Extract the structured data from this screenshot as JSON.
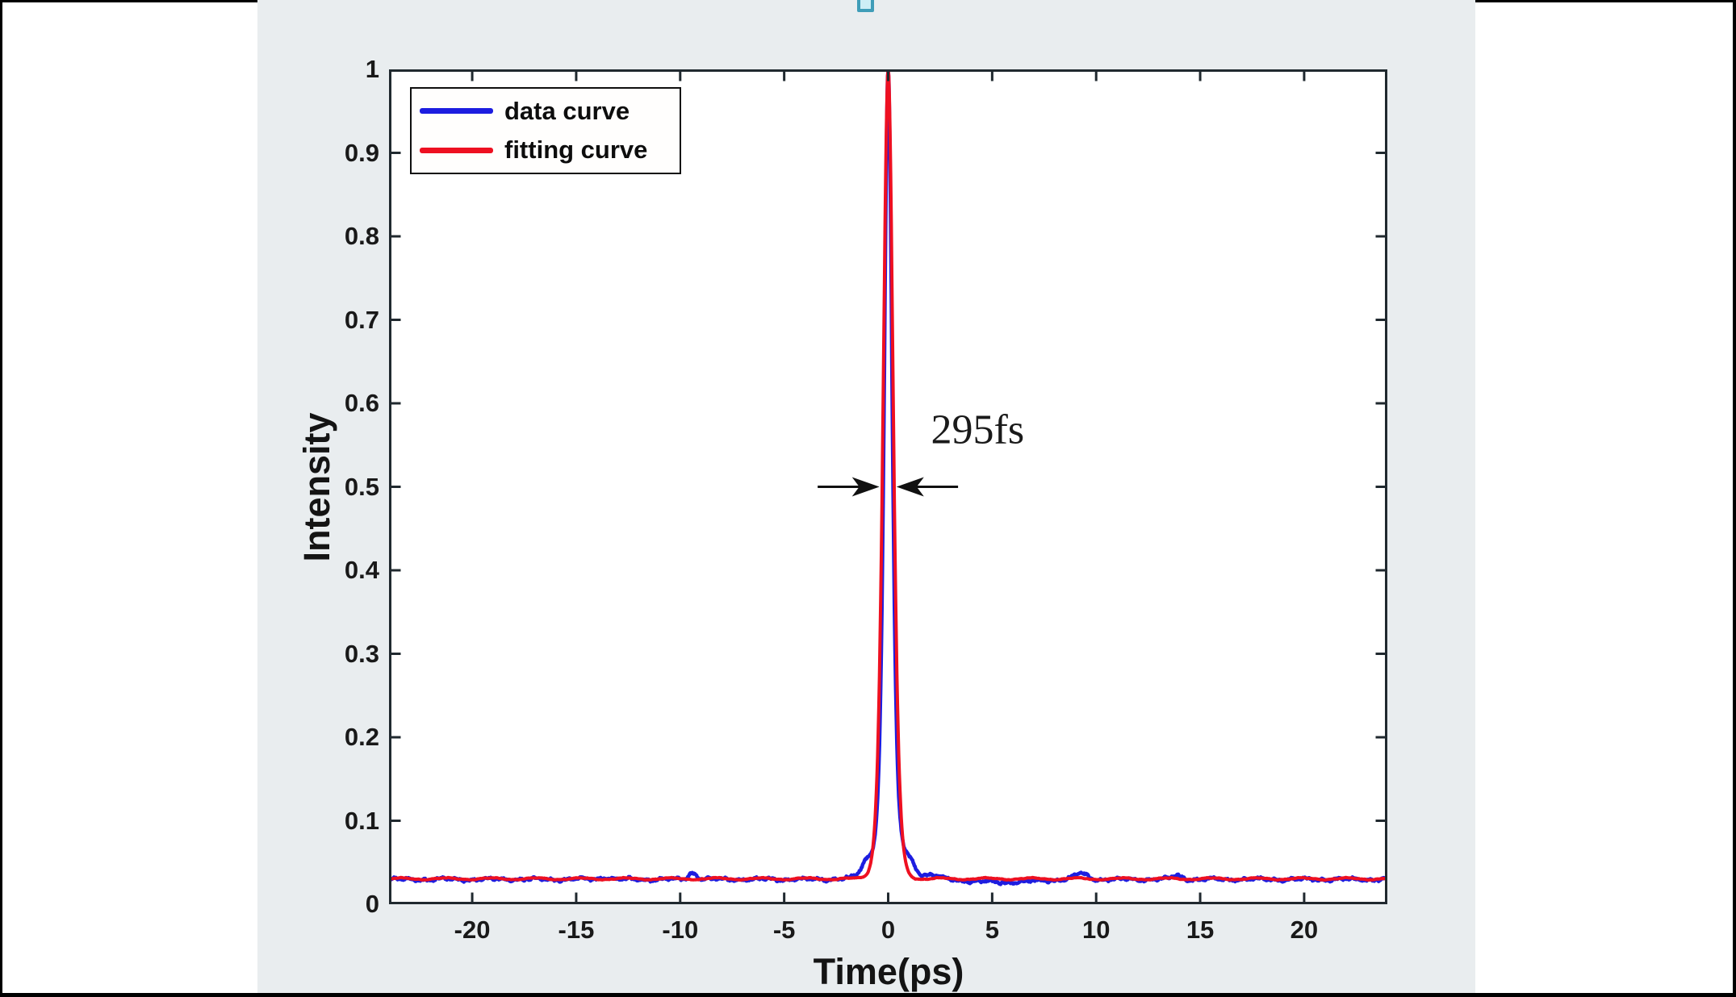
{
  "figure": {
    "page_background": "#ffffff",
    "frame_color": "#000000",
    "panel_background": "#e9edef",
    "axis_color": "#20292f",
    "tick_label_color": "#191919",
    "selection_handle": {
      "border": "#3f9db8",
      "fill": "#cdeef6"
    }
  },
  "legend": {
    "items": [
      {
        "label": "data curve",
        "color": "#1d1de0"
      },
      {
        "label": "fitting curve",
        "color": "#ee1021"
      }
    ]
  },
  "annotation": {
    "text": "295fs"
  },
  "chart_data": {
    "type": "line",
    "title": "",
    "xlabel": "Time(ps)",
    "ylabel": "Intensity",
    "xlim": [
      -24,
      24
    ],
    "ylim": [
      0,
      1
    ],
    "grid": false,
    "legend_position": "top-left",
    "x_ticks": [
      -20,
      -15,
      -10,
      -5,
      0,
      5,
      10,
      15,
      20
    ],
    "x_tick_labels": [
      "-20",
      "-15",
      "-10",
      "-5",
      "0",
      "5",
      "10",
      "15",
      "20"
    ],
    "y_ticks": [
      0,
      0.1,
      0.2,
      0.3,
      0.4,
      0.5,
      0.6,
      0.7,
      0.8,
      0.9,
      1
    ],
    "y_tick_labels": [
      "0",
      "0.1",
      "0.2",
      "0.3",
      "0.4",
      "0.5",
      "0.6",
      "0.7",
      "0.8",
      "0.9",
      "1"
    ],
    "key_points": {
      "peak_time_ps": 0,
      "peak_intensity": 1.0,
      "baseline_intensity": 0.03,
      "fwhm_label": "295fs",
      "fwhm_marker_intensity": 0.5
    },
    "series": [
      {
        "name": "data curve",
        "color": "#1d1de0",
        "line_width": 4.5,
        "model": {
          "type": "sech2_multi",
          "baseline": 0.0298,
          "seed": 42,
          "noise_amp": 0.0016,
          "components": [
            {
              "amp": 0.915,
              "tau_ps": 0.25
            },
            {
              "amp": 0.055,
              "tau_ps": 0.78
            }
          ],
          "bumps": [
            {
              "t_ps": 1.02,
              "amp": 0.013,
              "w_ps": 0.35
            },
            {
              "t_ps": -1.05,
              "amp": 0.011,
              "w_ps": 0.32
            },
            {
              "t_ps": 2.1,
              "amp": 0.004,
              "w_ps": 0.7
            },
            {
              "t_ps": -9.4,
              "amp": 0.008,
              "w_ps": 0.28
            },
            {
              "t_ps": 9.25,
              "amp": 0.007,
              "w_ps": 0.45
            },
            {
              "t_ps": 13.9,
              "amp": 0.0045,
              "w_ps": 0.35
            },
            {
              "t_ps": -13.6,
              "amp": 0.003,
              "w_ps": 0.3
            },
            {
              "t_ps": 5.5,
              "amp": -0.0035,
              "w_ps": 2.2
            }
          ]
        }
      },
      {
        "name": "fitting curve",
        "color": "#ee1021",
        "line_width": 4,
        "model": {
          "type": "sech2_multi",
          "baseline": 0.0305,
          "seed": 7,
          "noise_amp": 0.0004,
          "components": [
            {
              "amp": 0.9695,
              "tau_ps": 0.32
            }
          ],
          "bumps": []
        }
      }
    ],
    "annotations": [
      {
        "type": "label",
        "text": "295fs",
        "x_ps": 4.3,
        "y": 0.568
      },
      {
        "type": "width-arrows",
        "y": 0.5,
        "tips_ps": [
          -0.42,
          0.4
        ],
        "tails_ps": [
          -3.39,
          3.36
        ],
        "color": "#111111"
      }
    ]
  }
}
